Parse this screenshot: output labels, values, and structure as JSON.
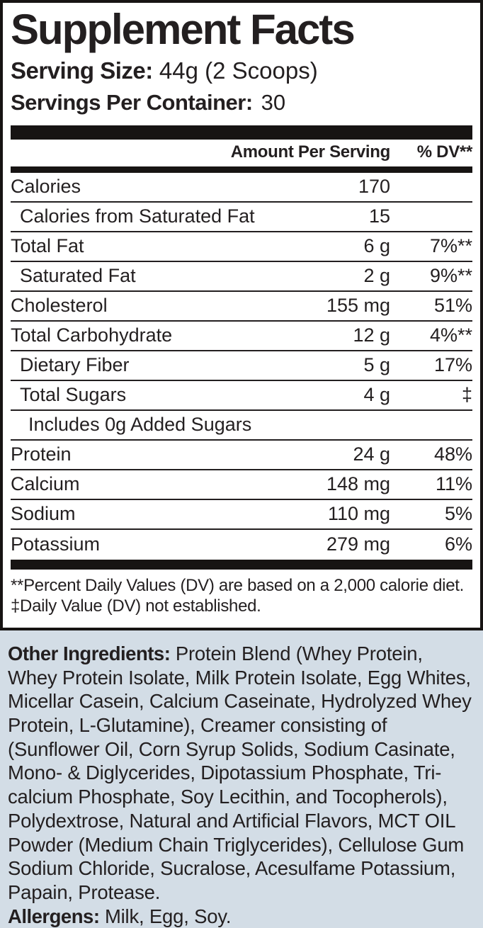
{
  "label": {
    "title": "Supplement Facts",
    "serving_size_label": "Serving Size:",
    "serving_size_value": "44g (2 Scoops)",
    "servings_label": "Servings Per Container:",
    "servings_value": "30",
    "table": {
      "amount_header": "Amount Per Serving",
      "dv_header": "% DV**",
      "rows": [
        {
          "name": "Calories",
          "amount": "170",
          "dv": "",
          "indent": 0
        },
        {
          "name": "Calories from Saturated Fat",
          "amount": "15",
          "dv": "",
          "indent": 1
        },
        {
          "name": "Total Fat",
          "amount": "6 g",
          "dv": "7%**",
          "indent": 0
        },
        {
          "name": "Saturated Fat",
          "amount": "2 g",
          "dv": "9%**",
          "indent": 1
        },
        {
          "name": "Cholesterol",
          "amount": "155 mg",
          "dv": "51%",
          "indent": 0
        },
        {
          "name": "Total Carbohydrate",
          "amount": "12 g",
          "dv": "4%**",
          "indent": 0
        },
        {
          "name": "Dietary Fiber",
          "amount": "5 g",
          "dv": "17%",
          "indent": 1
        },
        {
          "name": "Total Sugars",
          "amount": "4 g",
          "dv": "‡",
          "indent": 1
        },
        {
          "name": "Includes 0g Added Sugars",
          "amount": "",
          "dv": "",
          "indent": 2
        },
        {
          "name": "Protein",
          "amount": "24 g",
          "dv": "48%",
          "indent": 0
        },
        {
          "name": "Calcium",
          "amount": "148 mg",
          "dv": "11%",
          "indent": 0
        },
        {
          "name": "Sodium",
          "amount": "110 mg",
          "dv": "5%",
          "indent": 0
        },
        {
          "name": "Potassium",
          "amount": "279 mg",
          "dv": "6%",
          "indent": 0
        }
      ]
    },
    "footnotes": [
      "**Percent Daily Values (DV) are based on a 2,000 calorie diet.",
      "‡Daily Value (DV) not established."
    ],
    "other_ingredients_label": "Other Ingredients:",
    "other_ingredients_text": "Protein Blend (Whey Protein, Whey Protein Isolate, Milk Protein Isolate, Egg Whites, Micellar Casein, Calcium Caseinate, Hydrolyzed Whey Protein, L-Glutamine), Creamer consisting of (Sunflower Oil, Corn Syrup Solids, Sodium Casinate, Mono- & Diglycerides, Dipotassium Phosphate, Tri-calcium Phosphate, Soy Lecithin, and Tocopherols), Polydextrose, Natural and Artificial Flavors, MCT OIL Powder (Medium Chain Triglycerides), Cellulose Gum Sodium Chloride, Sucralose, Acesulfame Potassium, Papain, Protease.",
    "allergens_label": "Allergens:",
    "allergens_text": "Milk, Egg, Soy.",
    "colors": {
      "background": "#d3dde6",
      "panel": "#ffffff",
      "text": "#231f20",
      "bar": "#171413"
    }
  }
}
